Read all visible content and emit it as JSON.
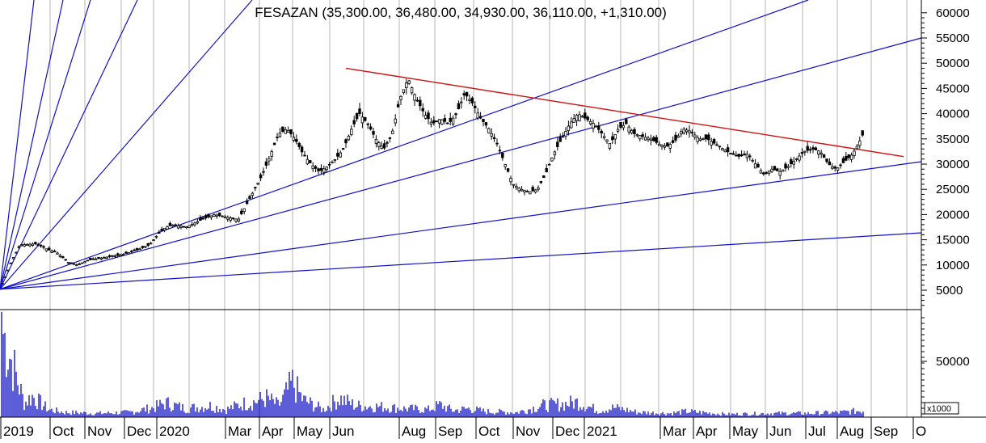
{
  "chart_data": [
    {
      "type": "candlestick",
      "title": "FESAZAN (35,300.00, 36,480.00, 34,930.00, 36,110.00, +1,310.00)",
      "y_ticks": [
        "60000",
        "55000",
        "50000",
        "45000",
        "40000",
        "35000",
        "30000",
        "25000",
        "20000",
        "15000",
        "10000",
        "5000"
      ],
      "ylim": [
        2000,
        62500
      ],
      "grid": "vertical lines at month boundaries",
      "x_labels": [
        "2019",
        "Oct",
        "Nov",
        "Dec",
        "2020",
        "Mar",
        "Apr",
        "May",
        "Jun",
        "Aug",
        "Sep",
        "Oct",
        "Nov",
        "Dec",
        "2021",
        "Mar",
        "Apr",
        "May",
        "Jun",
        "Jul",
        "Aug",
        "Sep",
        "O"
      ],
      "price_trend": [
        [
          0,
          5200
        ],
        [
          15,
          11000
        ],
        [
          25,
          14000
        ],
        [
          45,
          14200
        ],
        [
          60,
          13000
        ],
        [
          70,
          12500
        ],
        [
          85,
          10500
        ],
        [
          95,
          10000
        ],
        [
          110,
          11000
        ],
        [
          130,
          11500
        ],
        [
          150,
          12000
        ],
        [
          170,
          13000
        ],
        [
          185,
          14000
        ],
        [
          195,
          16000
        ],
        [
          205,
          17500
        ],
        [
          215,
          18000
        ],
        [
          230,
          17500
        ],
        [
          250,
          19000
        ],
        [
          265,
          20000
        ],
        [
          280,
          19500
        ],
        [
          295,
          19000
        ],
        [
          305,
          22000
        ],
        [
          315,
          25000
        ],
        [
          325,
          28000
        ],
        [
          335,
          32000
        ],
        [
          345,
          36000
        ],
        [
          355,
          37000
        ],
        [
          365,
          35000
        ],
        [
          375,
          32000
        ],
        [
          385,
          30000
        ],
        [
          395,
          28500
        ],
        [
          405,
          29500
        ],
        [
          415,
          31000
        ],
        [
          425,
          33000
        ],
        [
          435,
          37000
        ],
        [
          445,
          40000
        ],
        [
          455,
          38000
        ],
        [
          465,
          35000
        ],
        [
          475,
          33000
        ],
        [
          485,
          36000
        ],
        [
          495,
          43000
        ],
        [
          505,
          47000
        ],
        [
          515,
          43000
        ],
        [
          525,
          40000
        ],
        [
          535,
          38000
        ],
        [
          545,
          39000
        ],
        [
          555,
          38000
        ],
        [
          565,
          40000
        ],
        [
          575,
          44000
        ],
        [
          585,
          42000
        ],
        [
          595,
          39000
        ],
        [
          605,
          37000
        ],
        [
          615,
          34000
        ],
        [
          625,
          30000
        ],
        [
          635,
          26000
        ],
        [
          645,
          25000
        ],
        [
          655,
          24500
        ],
        [
          665,
          25000
        ],
        [
          675,
          28000
        ],
        [
          685,
          32000
        ],
        [
          695,
          35000
        ],
        [
          705,
          38000
        ],
        [
          715,
          40000
        ],
        [
          725,
          39000
        ],
        [
          735,
          38000
        ],
        [
          745,
          36000
        ],
        [
          755,
          34000
        ],
        [
          765,
          37000
        ],
        [
          775,
          38000
        ],
        [
          785,
          36000
        ],
        [
          795,
          35500
        ],
        [
          805,
          35000
        ],
        [
          815,
          34000
        ],
        [
          825,
          33500
        ],
        [
          835,
          34500
        ],
        [
          845,
          37000
        ],
        [
          855,
          36500
        ],
        [
          865,
          35000
        ],
        [
          875,
          35000
        ],
        [
          885,
          34000
        ],
        [
          895,
          33000
        ],
        [
          905,
          32000
        ],
        [
          915,
          31500
        ],
        [
          925,
          32000
        ],
        [
          935,
          30000
        ],
        [
          945,
          28000
        ],
        [
          955,
          29000
        ],
        [
          965,
          28500
        ],
        [
          975,
          29500
        ],
        [
          985,
          31000
        ],
        [
          995,
          32500
        ],
        [
          1005,
          33000
        ],
        [
          1015,
          32500
        ],
        [
          1025,
          30000
        ],
        [
          1035,
          29000
        ],
        [
          1045,
          30500
        ],
        [
          1055,
          32000
        ],
        [
          1062,
          34000
        ],
        [
          1068,
          36000
        ]
      ],
      "volume_trend": [
        [
          0,
          100
        ],
        [
          30,
          15
        ],
        [
          40,
          22
        ],
        [
          60,
          8
        ],
        [
          80,
          5
        ],
        [
          120,
          4
        ],
        [
          160,
          5
        ],
        [
          190,
          10
        ],
        [
          205,
          15
        ],
        [
          230,
          9
        ],
        [
          260,
          12
        ],
        [
          280,
          8
        ],
        [
          300,
          14
        ],
        [
          315,
          16
        ],
        [
          330,
          20
        ],
        [
          345,
          12
        ],
        [
          362,
          36
        ],
        [
          375,
          18
        ],
        [
          400,
          8
        ],
        [
          420,
          20
        ],
        [
          440,
          12
        ],
        [
          470,
          11
        ],
        [
          500,
          9
        ],
        [
          530,
          8
        ],
        [
          545,
          13
        ],
        [
          560,
          7
        ],
        [
          580,
          9
        ],
        [
          600,
          6
        ],
        [
          640,
          5
        ],
        [
          670,
          12
        ],
        [
          700,
          14
        ],
        [
          715,
          16
        ],
        [
          740,
          7
        ],
        [
          760,
          10
        ],
        [
          790,
          5
        ],
        [
          830,
          4
        ],
        [
          850,
          6
        ],
        [
          900,
          3
        ],
        [
          950,
          4
        ],
        [
          1000,
          4
        ],
        [
          1040,
          5
        ],
        [
          1068,
          7
        ]
      ],
      "volume_ticks": [
        "50000"
      ],
      "volume_multiplier": "x1000",
      "gann_fan_origin": [
        "2019",
        5200
      ],
      "resistance_line": [
        [
          "Jun",
          49000
        ],
        [
          "Sep",
          31500
        ]
      ],
      "support_line": [
        [
          "May",
          26000
        ],
        [
          "Sep",
          30400
        ]
      ]
    }
  ],
  "colors": {
    "background": "#ffffff",
    "fan_lines": "#1010c8",
    "resistance_line": "#d01010",
    "candles": "#000000",
    "volume_bars": "#1818c8",
    "grid": "#b4b4b4"
  }
}
